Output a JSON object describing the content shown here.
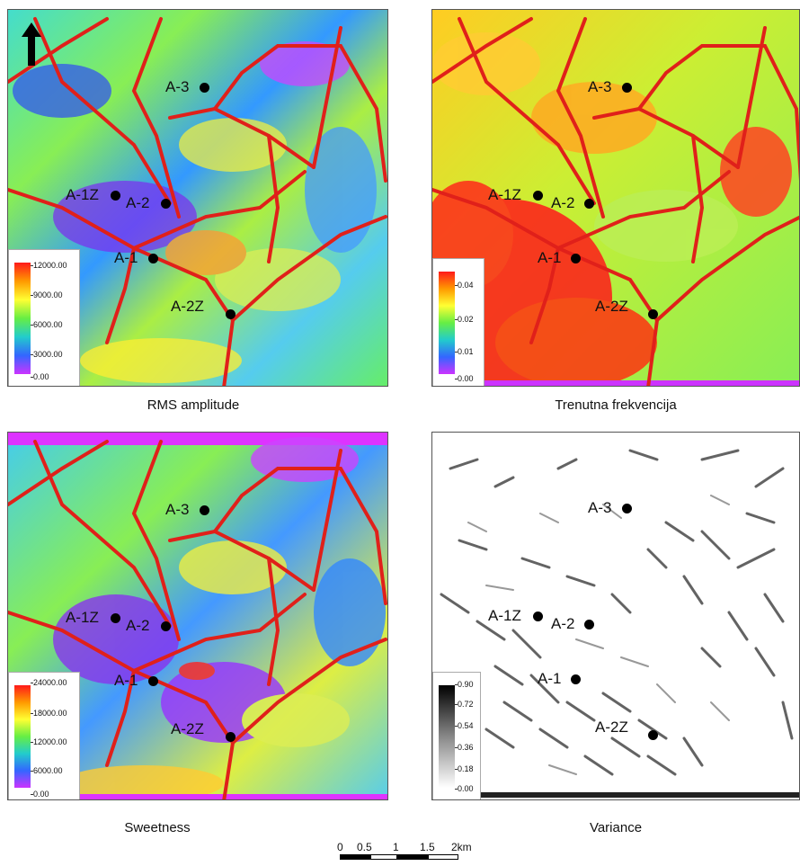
{
  "panels": [
    {
      "caption": "RMS amplitude",
      "colorbar": [
        "12000.00",
        "9000.00",
        "6000.00",
        "3000.00",
        "0.00"
      ],
      "ramp": [
        "#ff1a1a",
        "#ff9900",
        "#ffff33",
        "#66ee44",
        "#22cccc",
        "#3366ff",
        "#cc33ff"
      ]
    },
    {
      "caption": "Trenutna frekvencija",
      "colorbar": [
        "0.04",
        "0.02",
        "0.01",
        "0.00"
      ],
      "ramp": [
        "#ff1a1a",
        "#ff9900",
        "#ffff33",
        "#66ee44",
        "#22cccc",
        "#3366ff",
        "#cc33ff"
      ]
    },
    {
      "caption": "Sweetness",
      "colorbar": [
        "24000.00",
        "18000.00",
        "12000.00",
        "6000.00",
        "0.00"
      ],
      "ramp": [
        "#ff1a1a",
        "#ff9900",
        "#ffff33",
        "#66ee44",
        "#22cccc",
        "#3366ff",
        "#cc33ff"
      ]
    },
    {
      "caption": "Variance",
      "colorbar": [
        "0.90",
        "0.72",
        "0.54",
        "0.36",
        "0.18",
        "0.00"
      ],
      "ramp": [
        "#000000",
        "#888888",
        "#ffffff"
      ]
    }
  ],
  "wells": {
    "w1": "A-3",
    "w2": "A-1Z",
    "w3": "A-2",
    "w4": "A-1",
    "w5": "A-2Z"
  },
  "scale": {
    "ticks": [
      "0",
      "0.5",
      "1",
      "1.5",
      "2km"
    ]
  },
  "colors": {
    "fault": "#e0201a",
    "well": "#000000"
  },
  "icons": {
    "north": "north-arrow-icon"
  }
}
